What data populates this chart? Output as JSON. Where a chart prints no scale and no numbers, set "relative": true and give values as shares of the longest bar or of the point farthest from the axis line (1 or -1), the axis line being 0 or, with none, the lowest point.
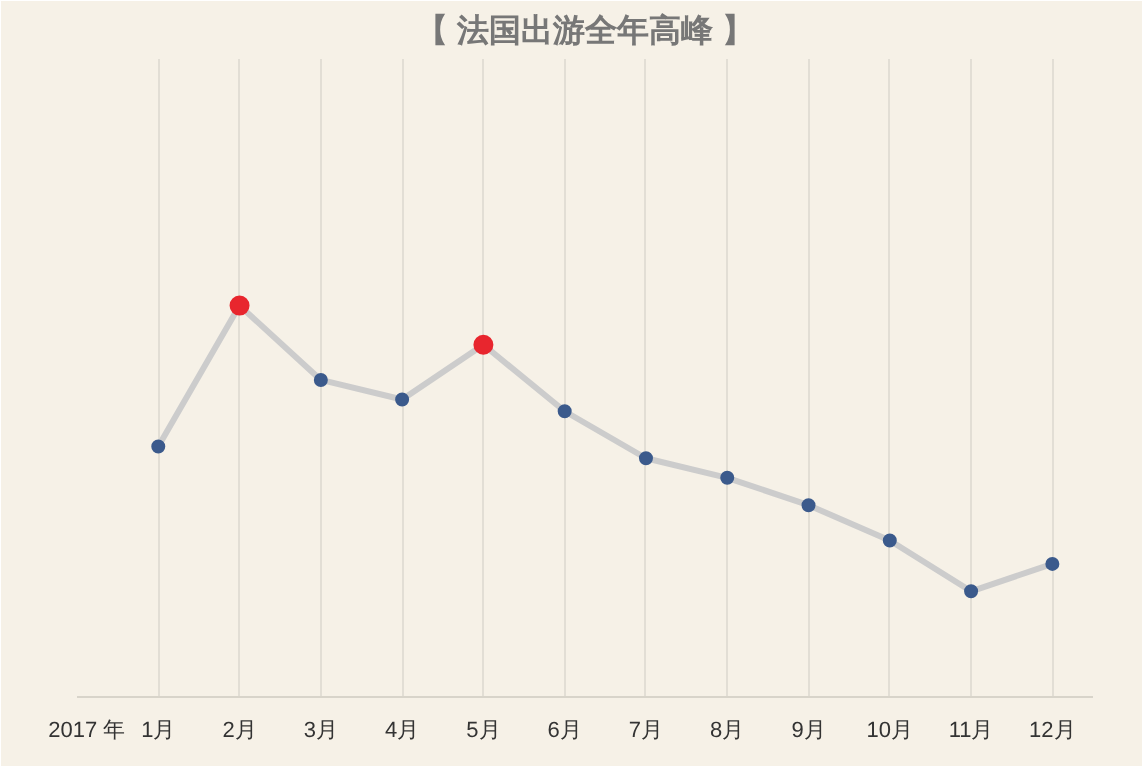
{
  "chart_data": {
    "type": "line",
    "title": "【 法国出游全年高峰 】",
    "relative": true,
    "categories": [
      "1月",
      "2月",
      "3月",
      "4月",
      "5月",
      "6月",
      "7月",
      "8月",
      "9月",
      "10月",
      "11月",
      "12月"
    ],
    "series": [
      {
        "color": "#cccccc",
        "colors": [
          "#3b5a8c",
          "#e8262e",
          "#3b5a8c",
          "#3b5a8c",
          "#e8262e",
          "#3b5a8c",
          "#3b5a8c",
          "#3b5a8c",
          "#3b5a8c",
          "#3b5a8c",
          "#3b5a8c",
          "#3b5a8c"
        ],
        "values": [
          0.64,
          1,
          0.81,
          0.76,
          0.9,
          0.73,
          0.61,
          0.56,
          0.49,
          0.4,
          0.27,
          0.34
        ]
      }
    ],
    "annotations": [
      "2017 年"
    ],
    "grid": "x",
    "marker": "circle",
    "line_style": "solid"
  }
}
